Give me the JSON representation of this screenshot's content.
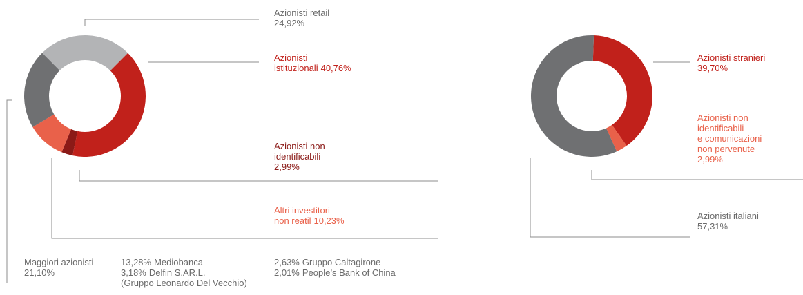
{
  "chart_data": [
    {
      "type": "donut",
      "categories": [
        "Azionisti retail",
        "Azionisti\nistituzionali",
        "Azionisti non\nidentificabili",
        "Altri investitori\nnon reatil",
        "Maggiori azionisti"
      ],
      "values": [
        24.92,
        40.76,
        2.99,
        10.23,
        21.1
      ],
      "value_labels": [
        "24,92%",
        "40,76%",
        "2,99%",
        "10,23%",
        "21,10%"
      ],
      "colors": [
        "#b3b4b6",
        "#c1211b",
        "#8b1a17",
        "#e9614a",
        "#6f7072"
      ],
      "label_colors": [
        "#6b6b6b",
        "#c1211b",
        "#8b1a17",
        "#e9614a",
        "#6b6b6b"
      ],
      "breakdown": [
        {
          "share": "13,28%",
          "name": "Mediobanca"
        },
        {
          "share": "3,18%",
          "name": "Delfin S.AR.L.\n(Gruppo Leonardo Del Vecchio)"
        },
        {
          "share": "2,63%",
          "name": "Gruppo Caltagirone"
        },
        {
          "share": "2,01%",
          "name": "People’s Bank of China"
        }
      ]
    },
    {
      "type": "donut",
      "categories": [
        "Azionisti stranieri",
        "Azionisti non\nidentificabili\ne comunicazioni\nnon pervenute",
        "Azionisti italiani"
      ],
      "values": [
        39.7,
        2.99,
        57.31
      ],
      "value_labels": [
        "39,70%",
        "2,99%",
        "57,31%"
      ],
      "colors": [
        "#c1211b",
        "#e9614a",
        "#6f7072"
      ],
      "label_colors": [
        "#c1211b",
        "#e9614a",
        "#6b6b6b"
      ]
    }
  ]
}
